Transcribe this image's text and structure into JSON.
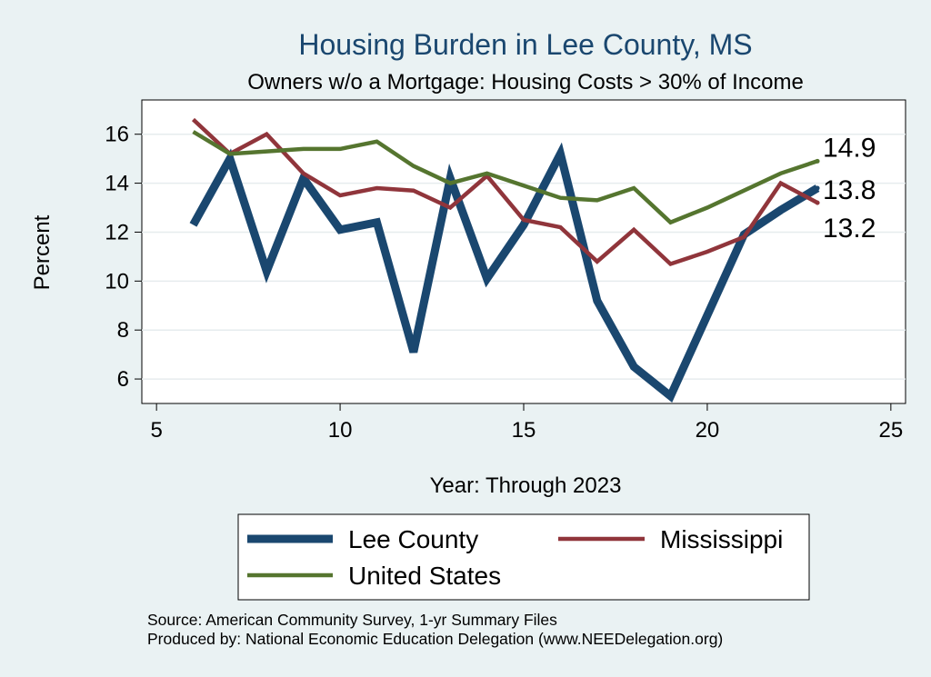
{
  "chart_data": {
    "type": "line",
    "title": "Housing Burden in Lee County, MS",
    "subtitle": "Owners w/o a Mortgage: Housing Costs > 30% of Income",
    "xlabel": "Year: Through 2023",
    "ylabel": "Percent",
    "xlim": [
      4.6,
      25.4
    ],
    "ylim": [
      5.0,
      17.4
    ],
    "xticks": [
      5,
      10,
      15,
      20,
      25
    ],
    "yticks": [
      6,
      8,
      10,
      12,
      14,
      16
    ],
    "x": [
      6,
      7,
      8,
      9,
      10,
      11,
      12,
      13,
      14,
      15,
      16,
      17,
      18,
      19,
      20,
      21,
      22,
      23
    ],
    "series": [
      {
        "name": "Lee County",
        "color": "#1a476f",
        "values": [
          12.3,
          15.0,
          10.4,
          14.2,
          12.1,
          12.4,
          7.1,
          14.2,
          10.1,
          12.3,
          15.2,
          9.2,
          6.5,
          5.3,
          8.6,
          11.9,
          12.9,
          13.8
        ],
        "end_label": "13.8"
      },
      {
        "name": "Mississippi",
        "color": "#90353b",
        "values": [
          16.6,
          15.2,
          16.0,
          14.4,
          13.5,
          13.8,
          13.7,
          13.0,
          14.3,
          12.5,
          12.2,
          10.8,
          12.1,
          10.7,
          11.2,
          11.8,
          14.0,
          13.2
        ],
        "end_label": "13.2"
      },
      {
        "name": "United States",
        "color": "#55752f",
        "values": [
          16.1,
          15.2,
          15.3,
          15.4,
          15.4,
          15.7,
          14.7,
          14.0,
          14.4,
          13.9,
          13.4,
          13.3,
          13.8,
          12.4,
          13.0,
          13.7,
          14.4,
          14.9
        ],
        "end_label": "14.9"
      }
    ],
    "source_lines": [
      "Source: American Community Survey, 1-yr Summary Files",
      "Produced by: National Economic Education Delegation (www.NEEDelegation.org)"
    ]
  }
}
